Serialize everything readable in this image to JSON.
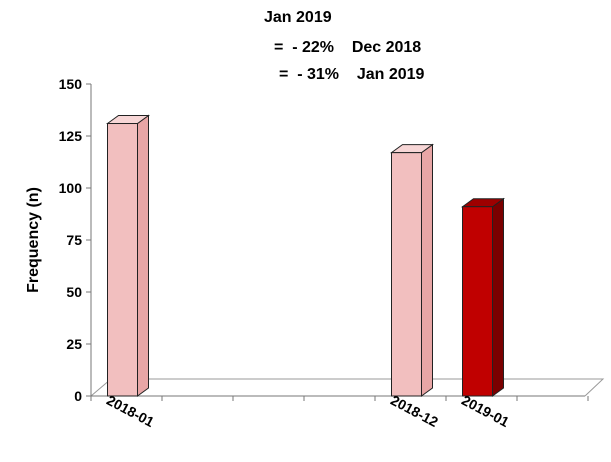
{
  "chart_data": {
    "type": "bar",
    "title_lines": [
      "Jan 2019",
      "=  - 22%    Dec 2018",
      "=  - 31%    Jan 2019"
    ],
    "ylabel": "Frequency (n)",
    "ylim": [
      0,
      150
    ],
    "yticks": [
      0,
      25,
      50,
      75,
      100,
      125,
      150
    ],
    "category_slots": [
      "2018-01",
      "",
      "",
      "",
      "2018-12",
      "2019-01",
      ""
    ],
    "categories": [
      "2018-01",
      "2018-12",
      "2019-01"
    ],
    "values": [
      131,
      117,
      91
    ],
    "grid": false,
    "legend": "none",
    "colors": {
      "light_front": "#f2bfbf",
      "light_side": "#e8a6a6",
      "light_top": "#f7d6d6",
      "dark_front": "#c00000",
      "dark_side": "#7a0000",
      "dark_top": "#9e0000",
      "outline": "#222222",
      "floor_line": "#999999"
    }
  }
}
